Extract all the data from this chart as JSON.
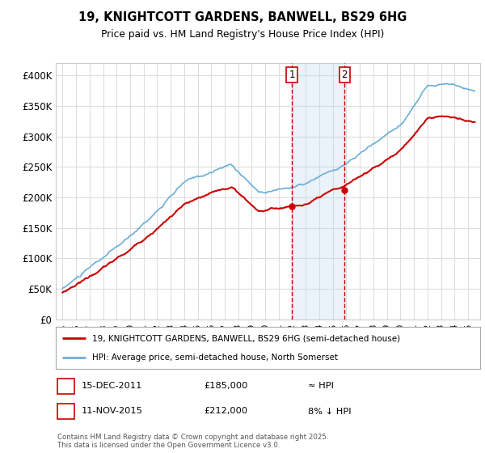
{
  "title_line1": "19, KNIGHTCOTT GARDENS, BANWELL, BS29 6HG",
  "title_line2": "Price paid vs. HM Land Registry's House Price Index (HPI)",
  "yticks": [
    0,
    50000,
    100000,
    150000,
    200000,
    250000,
    300000,
    350000,
    400000
  ],
  "ytick_labels": [
    "£0",
    "£50K",
    "£100K",
    "£150K",
    "£200K",
    "£250K",
    "£300K",
    "£350K",
    "£400K"
  ],
  "legend_line1": "19, KNIGHTCOTT GARDENS, BANWELL, BS29 6HG (semi-detached house)",
  "legend_line2": "HPI: Average price, semi-detached house, North Somerset",
  "transaction1_date": "15-DEC-2011",
  "transaction1_price": "£185,000",
  "transaction1_hpi": "≈ HPI",
  "transaction2_date": "11-NOV-2015",
  "transaction2_price": "£212,000",
  "transaction2_hpi": "8% ↓ HPI",
  "footnote": "Contains HM Land Registry data © Crown copyright and database right 2025.\nThis data is licensed under the Open Government Licence v3.0.",
  "transaction1_year": 2011.96,
  "transaction2_year": 2015.87,
  "transaction1_value": 185000,
  "transaction2_value": 212000,
  "hpi_color": "#6baed6",
  "price_color": "#cc0000",
  "shade_color": "#c6dbef",
  "background_color": "#ffffff",
  "grid_color": "#dddddd"
}
